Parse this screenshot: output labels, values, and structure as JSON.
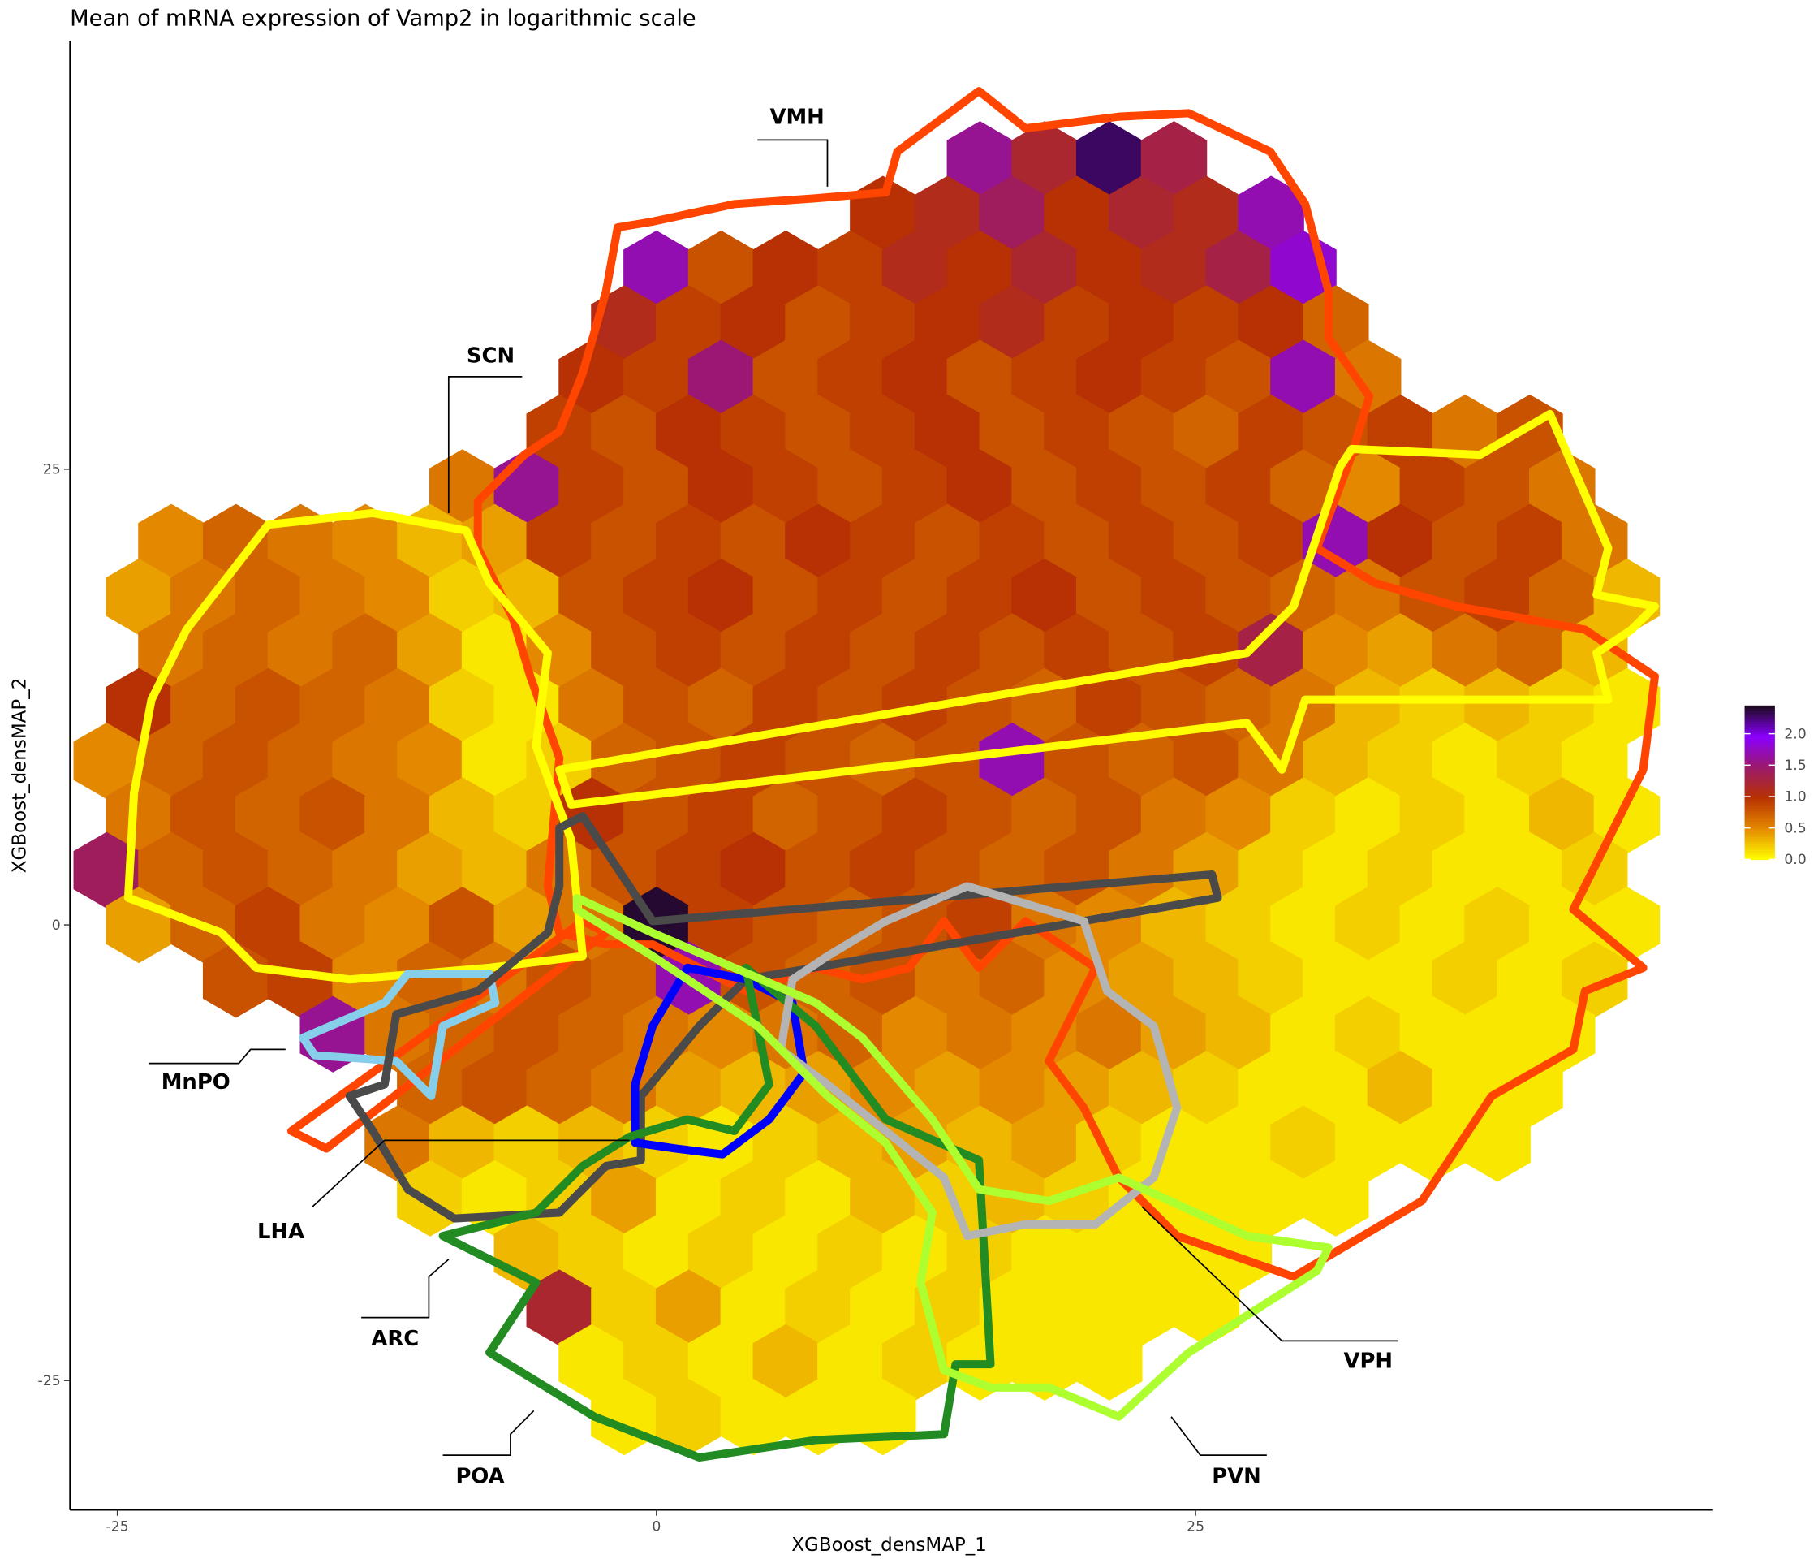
{
  "chart_data": {
    "type": "hexbin",
    "title": "Mean of mRNA expression of Vamp2 in logarithmic scale",
    "x_label": "XGBoost_densMAP_1",
    "y_label": "XGBoost_densMAP_2",
    "xlim": [
      -27.2,
      49.0
    ],
    "ylim": [
      -32.1,
      48.5
    ],
    "xticks": [
      -25,
      0,
      25
    ],
    "yticks": [
      -25,
      0,
      25
    ],
    "colorlim": [
      0,
      2.45
    ],
    "colormap": [
      "#ffff00",
      "#e58a00",
      "#b83200",
      "#9b1a6b",
      "#8a00ff",
      "#1a0a1a"
    ],
    "colorticks": [
      {
        "value": 0,
        "label": "0.0"
      },
      {
        "value": 0.5,
        "label": "0.5"
      },
      {
        "value": 1,
        "label": "1.0"
      },
      {
        "value": 1.5,
        "label": "1.5"
      },
      {
        "value": 2,
        "label": "2.0"
      }
    ],
    "regions": [
      {
        "name": "VMH",
        "color": "#ff4500"
      },
      {
        "name": "SCN",
        "color": "#ffff00"
      },
      {
        "name": "MnPO",
        "color": "#87ceeb"
      },
      {
        "name": "LHA",
        "color": "#4a4a4a"
      },
      {
        "name": "ARC",
        "color": "#0000ff"
      },
      {
        "name": "POA",
        "color": "#228b22"
      },
      {
        "name": "VPH",
        "color": "#b4b4b4"
      },
      {
        "name": "PVN",
        "color": "#adff2f"
      }
    ],
    "rows": [
      {
        "y": 42,
        "x": [
          15,
          18,
          21,
          24
        ],
        "values": [
          1.6,
          1.2,
          2.3,
          1.3
        ]
      },
      {
        "y": 39,
        "x": [
          10.5,
          13.5,
          16.5,
          19.5,
          22.5,
          25.5,
          28.5
        ],
        "values": [
          1.0,
          1.1,
          1.4,
          1.0,
          1.2,
          1.1,
          1.7
        ]
      },
      {
        "y": 36,
        "x": [
          0,
          3,
          6,
          9,
          12,
          15,
          18,
          21,
          24,
          27,
          30
        ],
        "values": [
          1.7,
          0.8,
          1.0,
          0.9,
          1.1,
          1.0,
          1.2,
          1.0,
          1.1,
          1.3,
          1.8
        ]
      },
      {
        "y": 33,
        "x": [
          -1.5,
          1.5,
          4.5,
          7.5,
          10.5,
          13.5,
          16.5,
          19.5,
          22.5,
          25.5,
          28.5,
          31.5
        ],
        "values": [
          1.1,
          0.9,
          1.0,
          0.8,
          0.9,
          1.0,
          1.1,
          0.9,
          1.0,
          0.9,
          1.0,
          0.7
        ]
      },
      {
        "y": 30,
        "x": [
          -3,
          0,
          3,
          6,
          9,
          12,
          15,
          18,
          21,
          24,
          27,
          30,
          33
        ],
        "values": [
          1.0,
          0.9,
          1.5,
          0.8,
          0.9,
          1.0,
          0.8,
          0.9,
          1.0,
          0.9,
          0.8,
          1.7,
          0.6
        ]
      },
      {
        "y": 27,
        "x": [
          -4.5,
          -1.5,
          1.5,
          4.5,
          7.5,
          10.5,
          13.5,
          16.5,
          19.5,
          22.5,
          25.5,
          28.5,
          31.5,
          34.5,
          37.5,
          40.5
        ],
        "values": [
          0.9,
          0.8,
          1.0,
          0.9,
          0.8,
          0.9,
          1.0,
          0.8,
          0.9,
          0.8,
          0.7,
          0.9,
          0.8,
          0.9,
          0.6,
          0.8
        ]
      },
      {
        "y": 24,
        "x": [
          -9,
          -6,
          -3,
          0,
          3,
          6,
          9,
          12,
          15,
          18,
          21,
          24,
          27,
          30,
          33,
          36,
          39,
          42
        ],
        "values": [
          0.6,
          1.6,
          0.9,
          0.8,
          1.0,
          0.9,
          0.8,
          0.9,
          1.0,
          0.8,
          0.9,
          0.8,
          0.9,
          0.7,
          0.5,
          0.9,
          0.8,
          0.6
        ]
      },
      {
        "y": 21,
        "x": [
          -22.5,
          -19.5,
          -16.5,
          -13.5,
          -10.5,
          -7.5,
          -4.5,
          -1.5,
          1.5,
          4.5,
          7.5,
          10.5,
          13.5,
          16.5,
          19.5,
          22.5,
          25.5,
          28.5,
          31.5,
          34.5,
          37.5,
          40.5,
          43.5
        ],
        "values": [
          0.5,
          0.7,
          0.6,
          0.5,
          0.3,
          0.4,
          0.9,
          0.8,
          0.9,
          0.8,
          1.0,
          0.9,
          0.8,
          0.9,
          0.8,
          0.9,
          0.8,
          0.9,
          1.7,
          1.0,
          0.8,
          0.9,
          0.6
        ]
      },
      {
        "y": 18,
        "x": [
          -24,
          -21,
          -18,
          -15,
          -12,
          -9,
          -6,
          -3,
          0,
          3,
          6,
          9,
          12,
          15,
          18,
          21,
          24,
          27,
          30,
          33,
          36,
          39,
          42,
          45
        ],
        "values": [
          0.4,
          0.6,
          0.7,
          0.6,
          0.5,
          0.2,
          0.3,
          0.8,
          0.9,
          1.0,
          0.8,
          0.9,
          0.8,
          0.9,
          1.0,
          0.8,
          0.9,
          0.8,
          0.7,
          0.6,
          0.8,
          0.9,
          0.7,
          0.3
        ]
      },
      {
        "y": 15,
        "x": [
          -22.5,
          -19.5,
          -16.5,
          -13.5,
          -10.5,
          -7.5,
          -4.5,
          -1.5,
          1.5,
          4.5,
          7.5,
          10.5,
          13.5,
          16.5,
          19.5,
          22.5,
          25.5,
          28.5,
          31.5,
          34.5,
          37.5,
          40.5,
          43.5
        ],
        "values": [
          0.6,
          0.7,
          0.6,
          0.7,
          0.4,
          0.1,
          0.5,
          0.8,
          0.9,
          0.8,
          0.9,
          0.8,
          0.9,
          0.8,
          0.9,
          0.8,
          0.9,
          1.3,
          0.5,
          0.4,
          0.6,
          0.7,
          0.3
        ]
      },
      {
        "y": 12,
        "x": [
          -24,
          -21,
          -18,
          -15,
          -12,
          -9,
          -6,
          -3,
          0,
          3,
          6,
          9,
          12,
          15,
          18,
          21,
          24,
          27,
          30,
          33,
          36,
          39,
          42,
          45
        ],
        "values": [
          1.0,
          0.7,
          0.8,
          0.7,
          0.6,
          0.2,
          0.1,
          0.6,
          0.8,
          0.7,
          0.9,
          0.8,
          0.9,
          0.8,
          0.7,
          0.9,
          0.8,
          0.7,
          0.6,
          0.3,
          0.2,
          0.3,
          0.2,
          0.1
        ]
      },
      {
        "y": 9,
        "x": [
          -25.5,
          -22.5,
          -19.5,
          -16.5,
          -13.5,
          -10.5,
          -7.5,
          -4.5,
          -1.5,
          1.5,
          4.5,
          7.5,
          10.5,
          13.5,
          16.5,
          19.5,
          22.5,
          25.5,
          28.5,
          31.5,
          34.5,
          37.5,
          40.5,
          43.5
        ],
        "values": [
          0.5,
          0.7,
          0.8,
          0.7,
          0.6,
          0.5,
          0.1,
          0.2,
          0.7,
          0.8,
          0.9,
          0.8,
          0.7,
          0.8,
          1.7,
          0.8,
          0.7,
          0.8,
          0.6,
          0.3,
          0.2,
          0.1,
          0.2,
          0.1
        ]
      },
      {
        "y": 6,
        "x": [
          -24,
          -21,
          -18,
          -15,
          -12,
          -9,
          -6,
          -3,
          0,
          3,
          6,
          9,
          12,
          15,
          18,
          21,
          24,
          27,
          30,
          33,
          36,
          39,
          42,
          45
        ],
        "values": [
          0.6,
          0.8,
          0.7,
          0.8,
          0.6,
          0.3,
          0.2,
          1.0,
          0.8,
          0.9,
          0.7,
          0.8,
          0.9,
          0.8,
          0.7,
          0.8,
          0.6,
          0.5,
          0.2,
          0.1,
          0.2,
          0.1,
          0.3,
          0.1
        ]
      },
      {
        "y": 3,
        "x": [
          -25.5,
          -22.5,
          -19.5,
          -16.5,
          -13.5,
          -10.5,
          -7.5,
          -4.5,
          -1.5,
          1.5,
          4.5,
          7.5,
          10.5,
          13.5,
          16.5,
          19.5,
          22.5,
          25.5,
          28.5,
          31.5,
          34.5,
          37.5,
          40.5,
          43.5
        ],
        "values": [
          1.4,
          0.7,
          0.8,
          0.7,
          0.6,
          0.4,
          0.3,
          0.6,
          0.8,
          0.9,
          1.0,
          0.8,
          0.9,
          0.8,
          0.7,
          0.8,
          0.6,
          0.4,
          0.2,
          0.1,
          0.2,
          0.1,
          0.1,
          0.2
        ]
      },
      {
        "y": 0,
        "x": [
          -24,
          -21,
          -18,
          -15,
          -12,
          -9,
          -6,
          -3,
          0,
          3,
          6,
          9,
          12,
          15,
          18,
          21,
          24,
          27,
          30,
          33,
          36,
          39,
          42,
          45
        ],
        "values": [
          0.4,
          0.7,
          0.9,
          0.6,
          0.5,
          0.8,
          0.4,
          0.6,
          2.4,
          0.9,
          0.8,
          0.7,
          0.8,
          0.9,
          0.6,
          0.5,
          0.3,
          0.2,
          0.1,
          0.2,
          0.1,
          0.2,
          0.1,
          0.1
        ]
      },
      {
        "y": -3,
        "x": [
          -19.5,
          -16.5,
          -13.5,
          -10.5,
          -7.5,
          -4.5,
          -1.5,
          1.5,
          4.5,
          7.5,
          10.5,
          13.5,
          16.5,
          19.5,
          22.5,
          25.5,
          28.5,
          31.5,
          34.5,
          37.5,
          40.5,
          43.5
        ],
        "values": [
          0.8,
          0.9,
          0.5,
          0.7,
          0.6,
          0.8,
          0.7,
          1.7,
          0.8,
          0.7,
          0.8,
          0.6,
          0.7,
          0.5,
          0.4,
          0.3,
          0.2,
          0.1,
          0.1,
          0.2,
          0.1,
          0.2
        ]
      },
      {
        "y": -6,
        "x": [
          -15,
          -12,
          -9,
          -6,
          -3,
          0,
          3,
          6,
          9,
          12,
          15,
          18,
          21,
          24,
          27,
          30,
          33,
          36,
          39,
          42
        ],
        "values": [
          1.6,
          0.6,
          0.7,
          0.8,
          0.7,
          0.6,
          0.5,
          0.6,
          0.7,
          0.5,
          0.6,
          0.5,
          0.6,
          0.4,
          0.3,
          0.1,
          0.2,
          0.1,
          0.1,
          0.1
        ]
      },
      {
        "y": -9,
        "x": [
          -10.5,
          -7.5,
          -4.5,
          -1.5,
          1.5,
          4.5,
          7.5,
          10.5,
          13.5,
          16.5,
          19.5,
          22.5,
          25.5,
          28.5,
          31.5,
          34.5,
          37.5,
          40.5
        ],
        "values": [
          0.7,
          0.8,
          0.7,
          0.6,
          0.4,
          0.3,
          0.4,
          0.5,
          0.4,
          0.5,
          0.4,
          0.3,
          0.2,
          0.1,
          0.1,
          0.3,
          0.1,
          0.1
        ]
      },
      {
        "y": -12,
        "x": [
          -12,
          -9,
          -6,
          -3,
          0,
          3,
          6,
          9,
          12,
          15,
          18,
          21,
          24,
          27,
          30,
          33,
          36,
          39
        ],
        "values": [
          0.6,
          0.3,
          0.2,
          0.3,
          0.2,
          0.1,
          0.2,
          0.3,
          0.4,
          0.3,
          0.4,
          0.2,
          0.1,
          0.1,
          0.2,
          0.1,
          0.1,
          0.1
        ]
      },
      {
        "y": -15,
        "x": [
          -10.5,
          -7.5,
          -4.5,
          -1.5,
          1.5,
          4.5,
          7.5,
          10.5,
          13.5,
          16.5,
          19.5,
          22.5,
          25.5,
          28.5,
          31.5
        ],
        "values": [
          0.2,
          0.1,
          0.2,
          0.4,
          0.1,
          0.2,
          0.1,
          0.3,
          0.2,
          0.3,
          0.2,
          0.1,
          0.1,
          0.1,
          0.1
        ]
      },
      {
        "y": -18,
        "x": [
          -6,
          -3,
          0,
          3,
          6,
          9,
          12,
          15,
          18,
          21,
          24,
          27
        ],
        "values": [
          0.3,
          0.2,
          0.1,
          0.2,
          0.1,
          0.2,
          0.1,
          0.2,
          0.1,
          0.1,
          0.1,
          0.1
        ]
      },
      {
        "y": -21,
        "x": [
          -4.5,
          -1.5,
          1.5,
          4.5,
          7.5,
          10.5,
          13.5,
          16.5,
          19.5,
          22.5,
          25.5
        ],
        "values": [
          1.2,
          0.2,
          0.4,
          0.1,
          0.2,
          0.1,
          0.2,
          0.1,
          0.1,
          0.1,
          0.1
        ]
      },
      {
        "y": -24,
        "x": [
          -3,
          0,
          3,
          6,
          9,
          12,
          15,
          18,
          21
        ],
        "values": [
          0.1,
          0.2,
          0.1,
          0.3,
          0.1,
          0.2,
          0.1,
          0.1,
          0.1
        ]
      },
      {
        "y": -27,
        "x": [
          -1.5,
          1.5,
          4.5,
          7.5,
          10.5
        ],
        "values": [
          0.1,
          0.2,
          0.1,
          0.1,
          0.1
        ]
      }
    ]
  }
}
